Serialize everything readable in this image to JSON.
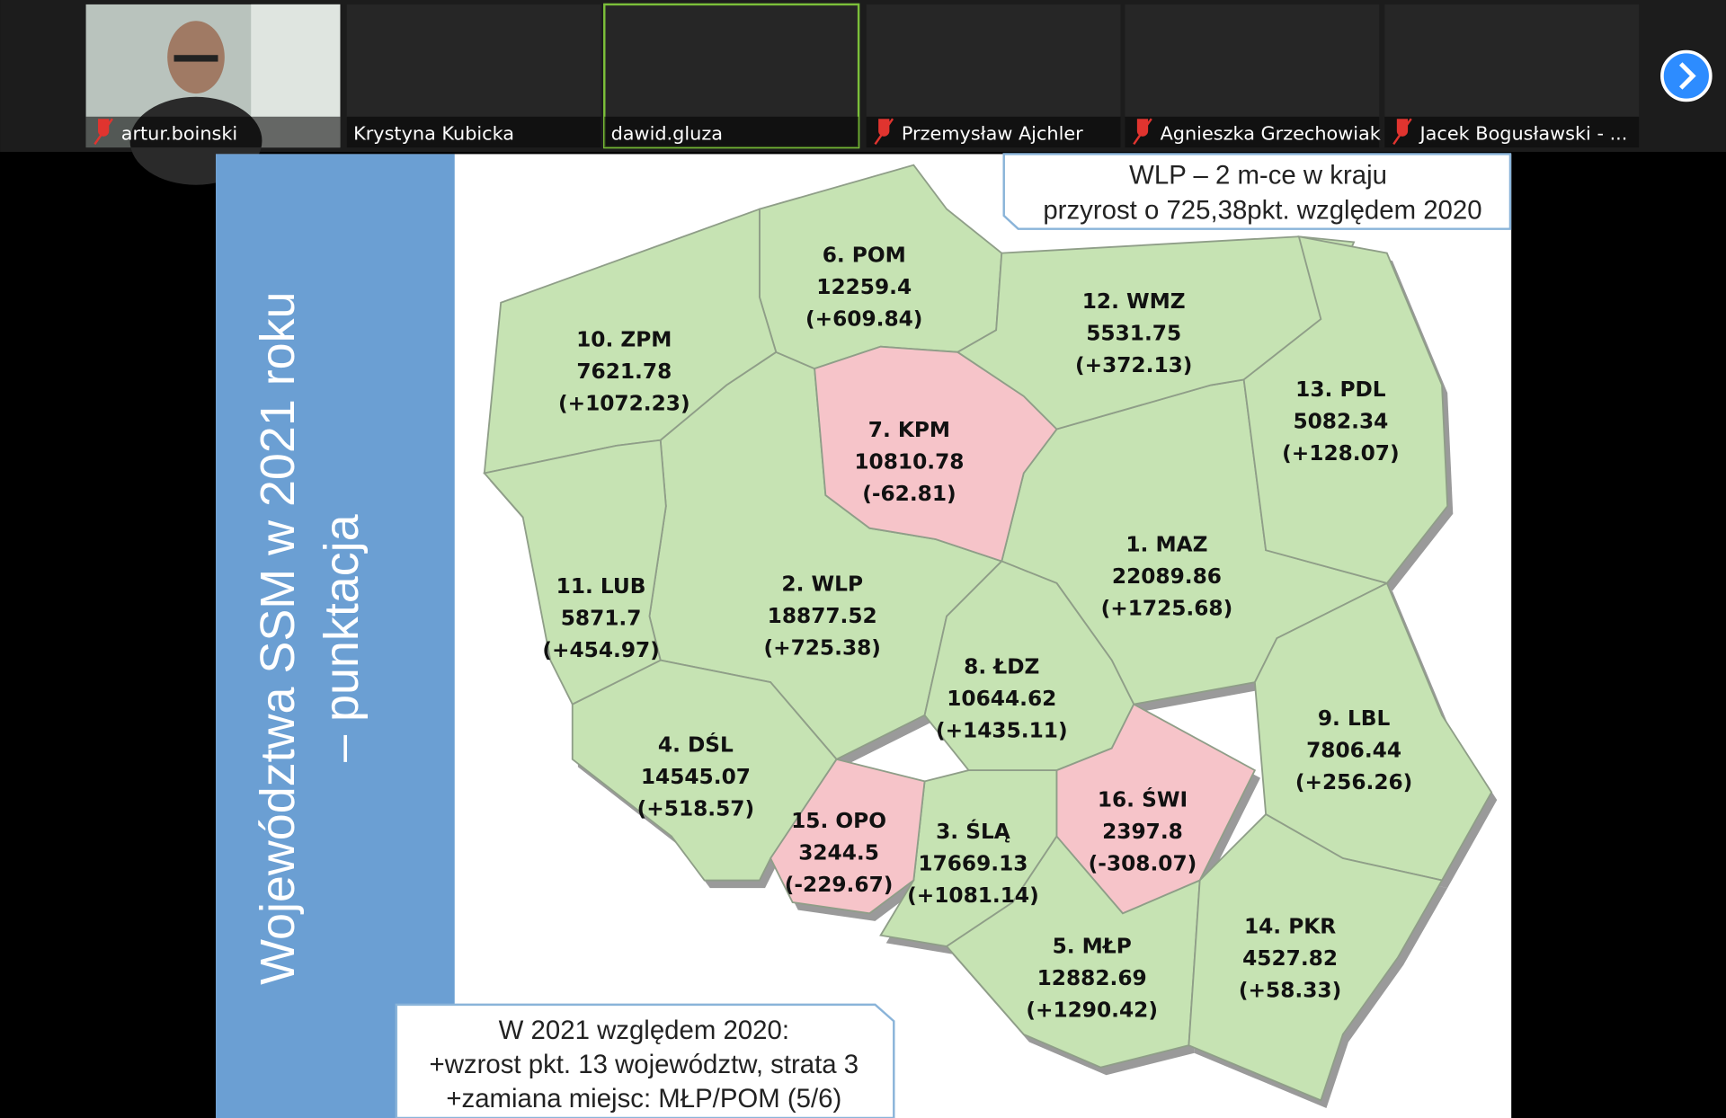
{
  "participants": [
    {
      "name": "artur.boinski",
      "muted": true
    },
    {
      "name": "Krystyna Kubicka",
      "muted": false
    },
    {
      "name": "dawid.gluza",
      "muted": false
    },
    {
      "name": "Przemysław Ajchler",
      "muted": true
    },
    {
      "name": "Agnieszka Grzechowiak",
      "muted": true
    },
    {
      "name": "Jacek Bogusławski - ...",
      "muted": true
    }
  ],
  "slide": {
    "title": "Województwa SSM w 2021 roku",
    "subtitle": "– punktacja",
    "top_note": [
      "WLP – 2 m-ce w kraju",
      "przyrost o 725,38pkt. względem 2020"
    ],
    "bottom_note": [
      "W 2021 względem 2020:",
      "+wzrost pkt. 13 województw, strata 3",
      "+zamiana miejsc: MŁP/POM (5/6)"
    ],
    "regions": [
      {
        "label": "1. MAZ",
        "value": "22089.86",
        "change": "(+1725.68)",
        "color": "#c6e3b3"
      },
      {
        "label": "2. WLP",
        "value": "18877.52",
        "change": "(+725.38)",
        "color": "#c6e3b3"
      },
      {
        "label": "3. ŚLĄ",
        "value": "17669.13",
        "change": "(+1081.14)",
        "color": "#c6e3b3"
      },
      {
        "label": "4. DŚL",
        "value": "14545.07",
        "change": "(+518.57)",
        "color": "#c6e3b3"
      },
      {
        "label": "5. MŁP",
        "value": "12882.69",
        "change": "(+1290.42)",
        "color": "#c6e3b3"
      },
      {
        "label": "6. POM",
        "value": "12259.4",
        "change": "(+609.84)",
        "color": "#c6e3b3"
      },
      {
        "label": "7. KPM",
        "value": "10810.78",
        "change": "(-62.81)",
        "color": "#f6c4c9"
      },
      {
        "label": "8. ŁDZ",
        "value": "10644.62",
        "change": "(+1435.11)",
        "color": "#c6e3b3"
      },
      {
        "label": "9. LBL",
        "value": "7806.44",
        "change": "(+256.26)",
        "color": "#c6e3b3"
      },
      {
        "label": "10. ZPM",
        "value": "7621.78",
        "change": "(+1072.23)",
        "color": "#c6e3b3"
      },
      {
        "label": "11. LUB",
        "value": "5871.7",
        "change": "(+454.97)",
        "color": "#c6e3b3"
      },
      {
        "label": "12. WMZ",
        "value": "5531.75",
        "change": "(+372.13)",
        "color": "#c6e3b3"
      },
      {
        "label": "13. PDL",
        "value": "5082.34",
        "change": "(+128.07)",
        "color": "#c6e3b3"
      },
      {
        "label": "14. PKR",
        "value": "4527.82",
        "change": "(+58.33)",
        "color": "#c6e3b3"
      },
      {
        "label": "15. OPO",
        "value": "3244.5",
        "change": "(-229.67)",
        "color": "#f6c4c9"
      },
      {
        "label": "16. ŚWI",
        "value": "2397.8",
        "change": "(-308.07)",
        "color": "#f6c4c9"
      }
    ]
  }
}
